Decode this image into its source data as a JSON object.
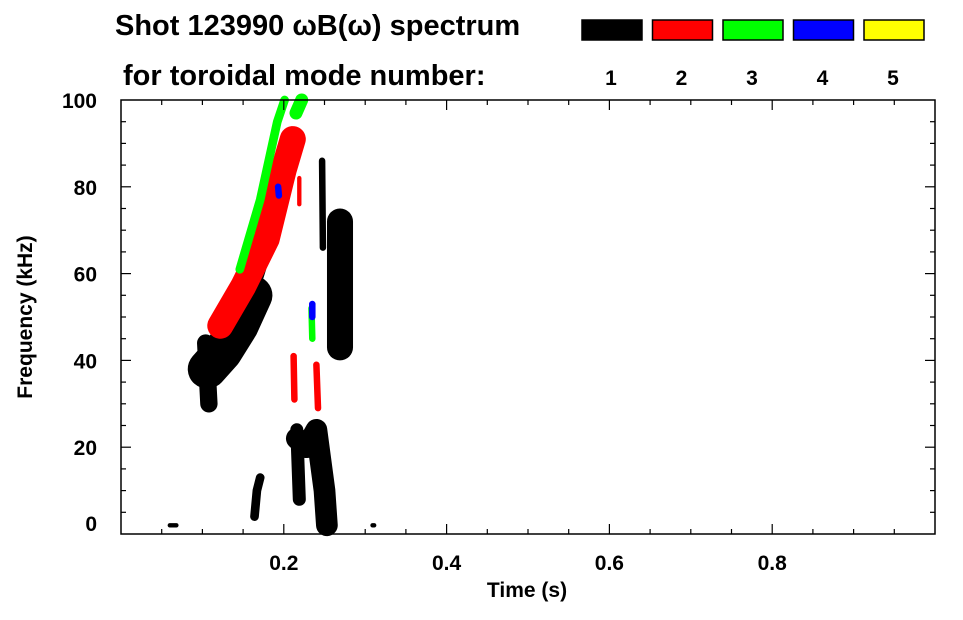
{
  "chart_data": {
    "type": "heatmap",
    "title": "Shot 123990 ωB(ω) spectrum",
    "subtitle": "for toroidal mode number:",
    "xlabel": "Time (s)",
    "ylabel": "Frequency (kHz)",
    "xlim": [
      0,
      1.0
    ],
    "ylim": [
      0,
      100
    ],
    "xticks": [
      0.2,
      0.4,
      0.6,
      0.8
    ],
    "xtick_labels": [
      "0.2",
      "0.4",
      "0.6",
      "0.8"
    ],
    "yticks": [
      0,
      20,
      40,
      60,
      80,
      100
    ],
    "ytick_labels": [
      "0",
      "20",
      "40",
      "60",
      "80",
      "100"
    ],
    "legend": [
      {
        "label": "1",
        "color": "#000000"
      },
      {
        "label": "2",
        "color": "#ff0000"
      },
      {
        "label": "3",
        "color": "#00ff00"
      },
      {
        "label": "4",
        "color": "#0000ff"
      },
      {
        "label": "5",
        "color": "#ffff00"
      }
    ],
    "features": [
      {
        "mode": 1,
        "spread_khz": 9,
        "points": [
          [
            0.106,
            38
          ],
          [
            0.125,
            42
          ],
          [
            0.145,
            48
          ],
          [
            0.162,
            55
          ]
        ]
      },
      {
        "mode": 1,
        "spread_khz": 4,
        "points": [
          [
            0.104,
            44
          ],
          [
            0.108,
            30
          ]
        ]
      },
      {
        "mode": 1,
        "spread_khz": 3,
        "points": [
          [
            0.165,
            58
          ],
          [
            0.185,
            70
          ],
          [
            0.19,
            74
          ]
        ]
      },
      {
        "mode": 2,
        "spread_khz": 6,
        "points": [
          [
            0.122,
            48
          ],
          [
            0.15,
            57
          ],
          [
            0.179,
            68
          ],
          [
            0.2,
            84
          ],
          [
            0.211,
            91
          ]
        ]
      },
      {
        "mode": 3,
        "spread_khz": 2,
        "points": [
          [
            0.146,
            61
          ],
          [
            0.171,
            77
          ],
          [
            0.192,
            95
          ],
          [
            0.201,
            100
          ]
        ]
      },
      {
        "mode": 3,
        "spread_khz": 3,
        "points": [
          [
            0.215,
            97
          ],
          [
            0.222,
            100
          ]
        ]
      },
      {
        "mode": 1,
        "spread_khz": 5,
        "points": [
          [
            0.216,
            22
          ],
          [
            0.228,
            20
          ],
          [
            0.24,
            24
          ],
          [
            0.25,
            10
          ],
          [
            0.253,
            2
          ]
        ]
      },
      {
        "mode": 1,
        "spread_khz": 3,
        "points": [
          [
            0.216,
            24
          ],
          [
            0.219,
            8
          ]
        ]
      },
      {
        "mode": 1,
        "spread_khz": 1.5,
        "points": [
          [
            0.247,
            86
          ],
          [
            0.248,
            66
          ]
        ]
      },
      {
        "mode": 1,
        "spread_khz": 6,
        "points": [
          [
            0.269,
            72
          ],
          [
            0.269,
            43
          ]
        ]
      },
      {
        "mode": 1,
        "spread_khz": 2,
        "points": [
          [
            0.164,
            4
          ],
          [
            0.167,
            10
          ],
          [
            0.171,
            13
          ]
        ]
      },
      {
        "mode": 1,
        "spread_khz": 1,
        "points": [
          [
            0.06,
            2
          ],
          [
            0.068,
            2
          ]
        ]
      },
      {
        "mode": 1,
        "spread_khz": 1,
        "points": [
          [
            0.309,
            2
          ],
          [
            0.311,
            2
          ]
        ]
      },
      {
        "mode": 2,
        "spread_khz": 1.5,
        "points": [
          [
            0.212,
            41
          ],
          [
            0.213,
            31
          ]
        ]
      },
      {
        "mode": 2,
        "spread_khz": 1.5,
        "points": [
          [
            0.24,
            39
          ],
          [
            0.242,
            29
          ]
        ]
      },
      {
        "mode": 2,
        "spread_khz": 1,
        "points": [
          [
            0.219,
            82
          ],
          [
            0.219,
            76
          ]
        ]
      },
      {
        "mode": 3,
        "spread_khz": 1.5,
        "points": [
          [
            0.234,
            52
          ],
          [
            0.235,
            45
          ]
        ]
      },
      {
        "mode": 4,
        "spread_khz": 1.5,
        "points": [
          [
            0.193,
            80
          ],
          [
            0.194,
            78
          ]
        ]
      },
      {
        "mode": 4,
        "spread_khz": 1.5,
        "points": [
          [
            0.235,
            53
          ],
          [
            0.235,
            50
          ]
        ]
      }
    ]
  }
}
